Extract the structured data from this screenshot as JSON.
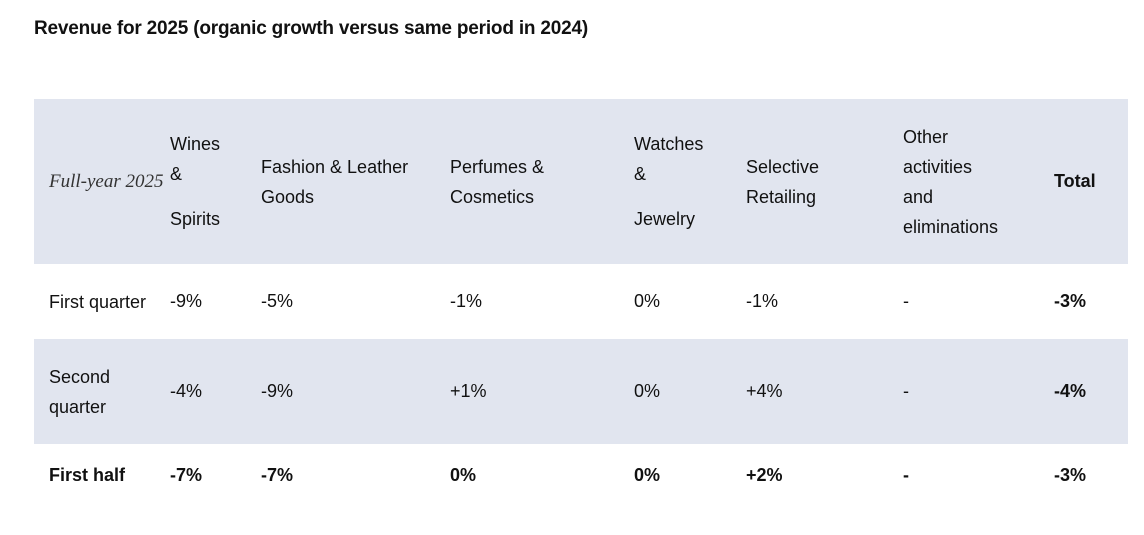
{
  "title": "Revenue for 2025 (organic growth versus same period in 2024)",
  "table": {
    "period_header": "Full-year 2025",
    "columns": {
      "wines_spirits": [
        "Wines",
        "&",
        "Spirits"
      ],
      "fashion_leather": [
        "Fashion & Leather",
        "Goods"
      ],
      "perfumes_cosmetics": [
        "Perfumes &",
        "Cosmetics"
      ],
      "watches_jewelry": [
        "Watches",
        "&",
        "Jewelry"
      ],
      "selective_retailing": [
        "Selective",
        "Retailing"
      ],
      "other": [
        "Other",
        "activities",
        "and",
        "eliminations"
      ],
      "total": "Total"
    },
    "rows": [
      {
        "label": "First quarter",
        "values": [
          "-9%",
          "-5%",
          "-1%",
          "0%",
          "-1%",
          "-",
          "-3%"
        ]
      },
      {
        "label": "Second quarter",
        "values": [
          "-4%",
          "-9%",
          "+1%",
          "0%",
          "+4%",
          "-",
          "-4%"
        ]
      },
      {
        "label": "First half",
        "values": [
          "-7%",
          "-7%",
          "0%",
          "0%",
          "+2%",
          "-",
          "-3%"
        ]
      }
    ]
  },
  "colors": {
    "band": "#e1e5ef",
    "text": "#111111"
  }
}
